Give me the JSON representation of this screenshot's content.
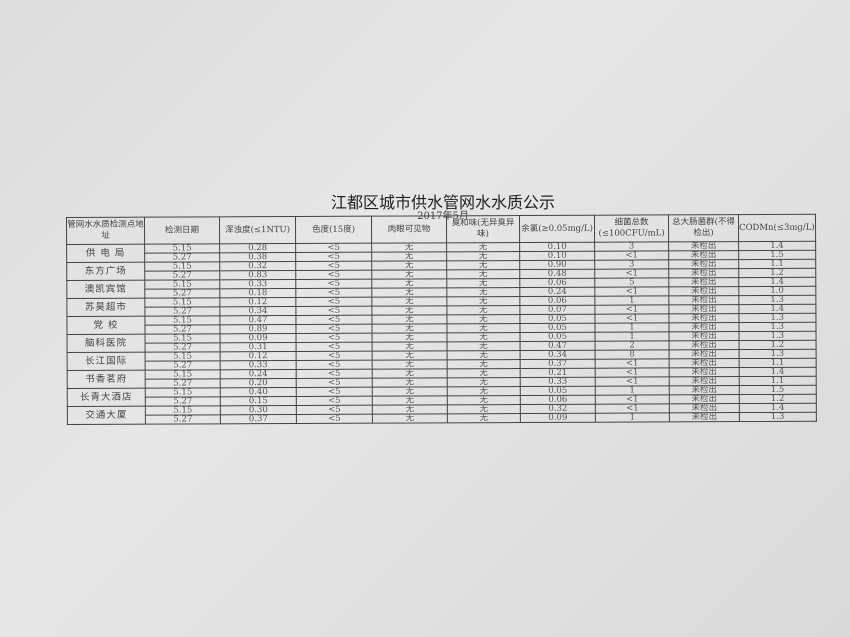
{
  "title": "江都区城市供水管网水水质公示",
  "subtitle": "2017年5月",
  "headers": [
    "管网水水质检测点地址",
    "检测日期",
    "浑浊度(≤1NTU)",
    "色度(15度)",
    "肉眼可见物",
    "臭和味(无异臭异味)",
    "余氯(≥0.05mg/L)",
    "细菌总数(≤100CFU/mL)",
    "总大肠菌群(不得检出)",
    "CODMn(≤3mg/L)"
  ],
  "sites": [
    {
      "name": "供 电 局",
      "rows": [
        [
          "5.15",
          "0.28",
          "<5",
          "无",
          "无",
          "0.10",
          "3",
          "未检出",
          "1.4"
        ],
        [
          "5.27",
          "0.38",
          "<5",
          "无",
          "无",
          "0.10",
          "<1",
          "未检出",
          "1.5"
        ]
      ]
    },
    {
      "name": "东方广场",
      "rows": [
        [
          "5.15",
          "0.32",
          "<5",
          "无",
          "无",
          "0.90",
          "3",
          "未检出",
          "1.1"
        ],
        [
          "5.27",
          "0.83",
          "<5",
          "无",
          "无",
          "0.48",
          "<1",
          "未检出",
          "1.2"
        ]
      ]
    },
    {
      "name": "澳凯宾馆",
      "rows": [
        [
          "5.15",
          "0.33",
          "<5",
          "无",
          "无",
          "0.06",
          "5",
          "未检出",
          "1.4"
        ],
        [
          "5.27",
          "0.18",
          "<5",
          "无",
          "无",
          "0.24",
          "<1",
          "未检出",
          "1.0"
        ]
      ]
    },
    {
      "name": "苏昊超市",
      "rows": [
        [
          "5.15",
          "0.12",
          "<5",
          "无",
          "无",
          "0.06",
          "1",
          "未检出",
          "1.3"
        ],
        [
          "5.27",
          "0.34",
          "<5",
          "无",
          "无",
          "0.07",
          "<1",
          "未检出",
          "1.4"
        ]
      ]
    },
    {
      "name": "党 校",
      "rows": [
        [
          "5.15",
          "0.47",
          "<5",
          "无",
          "无",
          "0.05",
          "<1",
          "未检出",
          "1.3"
        ],
        [
          "5.27",
          "0.89",
          "<5",
          "无",
          "无",
          "0.05",
          "1",
          "未检出",
          "1.3"
        ]
      ]
    },
    {
      "name": "脑科医院",
      "rows": [
        [
          "5.15",
          "0.09",
          "<5",
          "无",
          "无",
          "0.05",
          "1",
          "未检出",
          "1.3"
        ],
        [
          "5.27",
          "0.31",
          "<5",
          "无",
          "无",
          "0.47",
          "2",
          "未检出",
          "1.2"
        ]
      ]
    },
    {
      "name": "长江国际",
      "rows": [
        [
          "5.15",
          "0.12",
          "<5",
          "无",
          "无",
          "0.34",
          "8",
          "未检出",
          "1.3"
        ],
        [
          "5.27",
          "0.33",
          "<5",
          "无",
          "无",
          "0.37",
          "<1",
          "未检出",
          "1.1"
        ]
      ]
    },
    {
      "name": "书香茗府",
      "rows": [
        [
          "5.15",
          "0.24",
          "<5",
          "无",
          "无",
          "0.21",
          "<1",
          "未检出",
          "1.4"
        ],
        [
          "5.27",
          "0.20",
          "<5",
          "无",
          "无",
          "0.33",
          "<1",
          "未检出",
          "1.1"
        ]
      ]
    },
    {
      "name": "长青大酒店",
      "rows": [
        [
          "5.15",
          "0.40",
          "<5",
          "无",
          "无",
          "0.05",
          "1",
          "未检出",
          "1.5"
        ],
        [
          "5.27",
          "0.15",
          "<5",
          "无",
          "无",
          "0.06",
          "<1",
          "未检出",
          "1.2"
        ]
      ]
    },
    {
      "name": "交通大厦",
      "rows": [
        [
          "5.15",
          "0.30",
          "<5",
          "无",
          "无",
          "0.32",
          "<1",
          "未检出",
          "1.4"
        ],
        [
          "5.27",
          "0.37",
          "<5",
          "无",
          "无",
          "0.09",
          "1",
          "未检出",
          "1.3"
        ]
      ]
    }
  ]
}
